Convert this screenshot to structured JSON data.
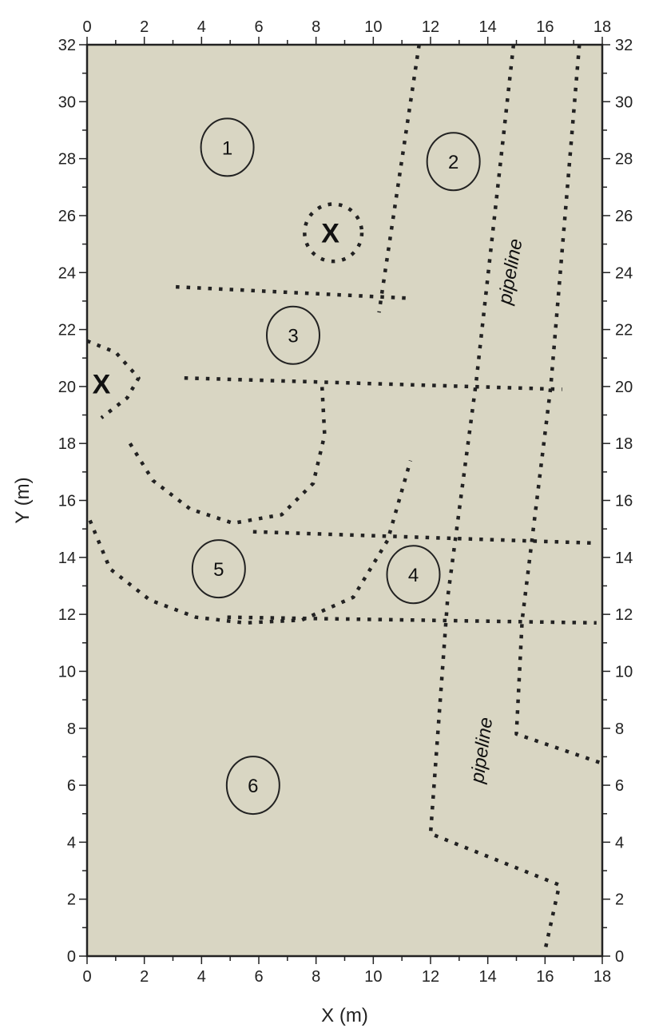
{
  "chart_data": {
    "type": "scatter",
    "xlabel": "X (m)",
    "ylabel": "Y (m)",
    "xlim": [
      0,
      18
    ],
    "ylim": [
      0,
      32
    ],
    "x_ticks": [
      0,
      2,
      4,
      6,
      8,
      10,
      12,
      14,
      16,
      18
    ],
    "y_ticks": [
      0,
      2,
      4,
      6,
      8,
      10,
      12,
      14,
      16,
      18,
      20,
      22,
      24,
      26,
      28,
      30,
      32
    ],
    "grid": false,
    "background_color": "#d9d6c3",
    "line_color": "#222222",
    "zones": [
      {
        "label": "1",
        "x": 4.9,
        "y": 28.4
      },
      {
        "label": "2",
        "x": 12.8,
        "y": 27.9
      },
      {
        "label": "3",
        "x": 7.2,
        "y": 21.8
      },
      {
        "label": "4",
        "x": 11.4,
        "y": 13.4
      },
      {
        "label": "5",
        "x": 4.6,
        "y": 13.6
      },
      {
        "label": "6",
        "x": 5.8,
        "y": 6.0
      }
    ],
    "marks": [
      {
        "label": "X",
        "x": 8.5,
        "y": 25.4
      },
      {
        "label": "X",
        "x": 0.5,
        "y": 20.1
      }
    ],
    "annotations": [
      {
        "text": "pipeline",
        "x": 15.0,
        "y": 24.0,
        "angle": -80
      },
      {
        "text": "pipeline",
        "x": 14.0,
        "y": 7.2,
        "angle": -82
      }
    ],
    "features": [
      {
        "name": "boundary-line",
        "points": [
          [
            11.6,
            32
          ],
          [
            10.2,
            22.6
          ]
        ]
      },
      {
        "name": "boundary-line",
        "points": [
          [
            3.1,
            23.5
          ],
          [
            11.2,
            23.1
          ]
        ]
      },
      {
        "name": "boundary-line",
        "points": [
          [
            3.4,
            20.3
          ],
          [
            16.6,
            19.9
          ]
        ]
      },
      {
        "name": "boundary-line",
        "points": [
          [
            5.8,
            14.9
          ],
          [
            17.8,
            14.5
          ]
        ]
      },
      {
        "name": "boundary-line",
        "points": [
          [
            4.9,
            11.9
          ],
          [
            17.8,
            11.7
          ]
        ]
      },
      {
        "name": "boundary-line",
        "points": [
          [
            14.9,
            32
          ],
          [
            13.6,
            20.2
          ],
          [
            12.6,
            12.6
          ],
          [
            12.0,
            4.3
          ],
          [
            16.5,
            2.5
          ],
          [
            16.0,
            0.2
          ]
        ]
      },
      {
        "name": "boundary-line",
        "points": [
          [
            17.2,
            32
          ],
          [
            16.2,
            20.0
          ],
          [
            15.2,
            11.8
          ],
          [
            15.0,
            7.8
          ],
          [
            17.9,
            6.8
          ]
        ]
      },
      {
        "name": "boundary-line",
        "points": [
          [
            1.5,
            18.0
          ],
          [
            2.3,
            16.7
          ],
          [
            3.6,
            15.7
          ],
          [
            5.1,
            15.2
          ],
          [
            6.8,
            15.5
          ],
          [
            7.9,
            16.6
          ],
          [
            8.3,
            18.3
          ],
          [
            8.2,
            20.2
          ]
        ]
      },
      {
        "name": "boundary-line",
        "points": [
          [
            0.1,
            15.3
          ],
          [
            0.8,
            13.6
          ],
          [
            2.2,
            12.5
          ],
          [
            3.8,
            11.9
          ],
          [
            5.5,
            11.7
          ],
          [
            7.5,
            11.8
          ],
          [
            9.3,
            12.6
          ],
          [
            10.5,
            14.6
          ],
          [
            11.3,
            17.4
          ]
        ]
      },
      {
        "name": "boundary-line",
        "points": [
          [
            0,
            21.6
          ],
          [
            1.0,
            21.2
          ],
          [
            1.8,
            20.3
          ],
          [
            1.4,
            19.6
          ],
          [
            0.5,
            18.9
          ]
        ]
      },
      {
        "name": "circle-line",
        "center": [
          8.6,
          25.4
        ],
        "radius": 1.0
      }
    ]
  }
}
